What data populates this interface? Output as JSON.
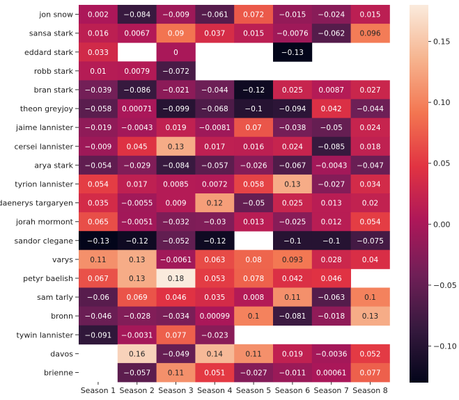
{
  "chart_data": {
    "type": "heatmap",
    "title": "",
    "xlabel": "",
    "ylabel": "",
    "columns": [
      "Season 1",
      "Season 2",
      "Season 3",
      "Season 4",
      "Season 5",
      "Season 6",
      "Season 7",
      "Season 8"
    ],
    "rows": [
      {
        "label": "jon snow",
        "values": [
          "0.002",
          "-0.084",
          "-0.009",
          "-0.061",
          "0.072",
          "-0.015",
          "-0.024",
          "0.015"
        ]
      },
      {
        "label": "sansa stark",
        "values": [
          "0.016",
          "0.0067",
          "0.09",
          "0.037",
          "0.015",
          "-0.0076",
          "-0.062",
          "0.096"
        ]
      },
      {
        "label": "eddard stark",
        "values": [
          "0.033",
          null,
          "0",
          null,
          null,
          "-0.13",
          null,
          null
        ]
      },
      {
        "label": "robb stark",
        "values": [
          "0.01",
          "0.0079",
          "-0.072",
          null,
          null,
          null,
          null,
          null
        ]
      },
      {
        "label": "bran stark",
        "values": [
          "-0.039",
          "-0.086",
          "-0.021",
          "-0.044",
          "-0.12",
          "0.025",
          "0.0087",
          "0.027"
        ]
      },
      {
        "label": "theon greyjoy",
        "values": [
          "-0.058",
          "0.00071",
          "-0.099",
          "-0.068",
          "-0.1",
          "-0.094",
          "0.042",
          "-0.044"
        ]
      },
      {
        "label": "jaime lannister",
        "values": [
          "-0.019",
          "-0.0043",
          "0.019",
          "-0.0081",
          "0.07",
          "-0.038",
          "-0.05",
          "0.024"
        ]
      },
      {
        "label": "cersei lannister",
        "values": [
          "-0.009",
          "0.045",
          "0.13",
          "0.017",
          "0.016",
          "0.024",
          "-0.085",
          "0.018"
        ]
      },
      {
        "label": "arya stark",
        "values": [
          "-0.054",
          "-0.029",
          "-0.084",
          "-0.057",
          "-0.026",
          "-0.067",
          "-0.0043",
          "-0.047"
        ]
      },
      {
        "label": "tyrion lannister",
        "values": [
          "0.054",
          "0.017",
          "0.0085",
          "0.0072",
          "0.058",
          "0.13",
          "-0.027",
          "0.034"
        ]
      },
      {
        "label": "daenerys targaryen",
        "values": [
          "0.035",
          "-0.0055",
          "0.009",
          "0.12",
          "-0.05",
          "0.025",
          "0.013",
          "0.02"
        ]
      },
      {
        "label": "jorah mormont",
        "values": [
          "0.065",
          "-0.0051",
          "-0.032",
          "-0.03",
          "0.013",
          "-0.025",
          "0.012",
          "0.054"
        ]
      },
      {
        "label": "sandor clegane",
        "values": [
          "-0.13",
          "-0.12",
          "-0.052",
          "-0.12",
          null,
          "-0.1",
          "-0.1",
          "-0.075"
        ]
      },
      {
        "label": "varys",
        "values": [
          "0.11",
          "0.13",
          "-0.0061",
          "0.063",
          "0.08",
          "0.093",
          "0.028",
          "0.04"
        ]
      },
      {
        "label": "petyr baelish",
        "values": [
          "0.067",
          "0.13",
          "0.18",
          "0.053",
          "0.078",
          "0.042",
          "0.046",
          null
        ]
      },
      {
        "label": "sam tarly",
        "values": [
          "-0.06",
          "0.069",
          "0.046",
          "0.035",
          "0.008",
          "0.11",
          "-0.063",
          "0.1"
        ]
      },
      {
        "label": "bronn",
        "values": [
          "-0.046",
          "-0.028",
          "-0.034",
          "0.00099",
          "0.1",
          "-0.081",
          "-0.018",
          "0.13"
        ]
      },
      {
        "label": "tywin lannister",
        "values": [
          "-0.091",
          "-0.0031",
          "0.077",
          "-0.023",
          null,
          null,
          null,
          null
        ]
      },
      {
        "label": "davos",
        "values": [
          null,
          "0.16",
          "-0.049",
          "0.14",
          "0.11",
          "0.019",
          "-0.0036",
          "0.052"
        ]
      },
      {
        "label": "brienne",
        "values": [
          null,
          "-0.057",
          "0.11",
          "0.051",
          "-0.027",
          "-0.011",
          "0.00061",
          "0.077"
        ]
      }
    ],
    "colorbar": {
      "vmin": -0.13,
      "vmax": 0.18,
      "ticks": [
        {
          "value": -0.1,
          "label": "−0.10"
        },
        {
          "value": -0.05,
          "label": "−0.05"
        },
        {
          "value": 0.0,
          "label": "0.00"
        },
        {
          "value": 0.05,
          "label": "0.05"
        },
        {
          "value": 0.1,
          "label": "0.10"
        },
        {
          "value": 0.15,
          "label": "0.15"
        }
      ],
      "colormap": "rocket",
      "stops": [
        "#03051a",
        "#36193e",
        "#701f57",
        "#ad1759",
        "#e13342",
        "#f37651",
        "#f6b48f",
        "#faebdd"
      ]
    }
  }
}
